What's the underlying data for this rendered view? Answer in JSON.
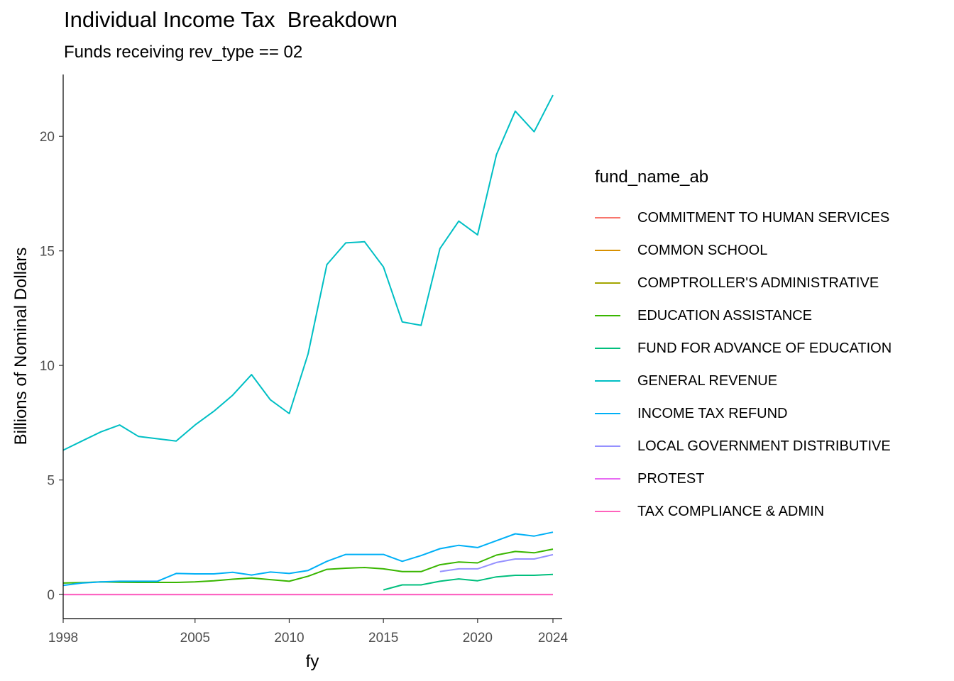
{
  "chart_data": {
    "type": "line",
    "title": "Individual Income Tax  Breakdown",
    "subtitle": "Funds receiving rev_type == 02",
    "xlabel": "fy",
    "ylabel": "Billions of Nominal Dollars",
    "xlim": [
      1998,
      2024
    ],
    "ylim": [
      -1.05,
      22.7
    ],
    "xticks": [
      1998,
      2005,
      2010,
      2015,
      2020,
      2024
    ],
    "yticks": [
      0,
      5,
      10,
      15,
      20
    ],
    "grid": false,
    "legend_position": "right",
    "legend_title": "fund_name_ab",
    "series": [
      {
        "name": "COMMITMENT TO HUMAN SERVICES",
        "color": "#F8766D",
        "x": [],
        "y": []
      },
      {
        "name": "COMMON SCHOOL",
        "color": "#D89000",
        "x": [],
        "y": []
      },
      {
        "name": "COMPTROLLER'S ADMINISTRATIVE",
        "color": "#A3A500",
        "x": [],
        "y": []
      },
      {
        "name": "EDUCATION ASSISTANCE",
        "color": "#39B600",
        "x": [
          1998,
          1999,
          2000,
          2001,
          2002,
          2003,
          2004,
          2005,
          2006,
          2007,
          2008,
          2009,
          2010,
          2011,
          2012,
          2013,
          2014,
          2015,
          2016,
          2017,
          2018,
          2019,
          2020,
          2021,
          2022,
          2023,
          2024
        ],
        "y": [
          0.5,
          0.52,
          0.55,
          0.54,
          0.53,
          0.53,
          0.53,
          0.55,
          0.6,
          0.67,
          0.72,
          0.65,
          0.58,
          0.8,
          1.1,
          1.15,
          1.18,
          1.12,
          1.0,
          1.0,
          1.3,
          1.42,
          1.38,
          1.72,
          1.88,
          1.82,
          1.98
        ]
      },
      {
        "name": "FUND FOR ADVANCE OF EDUCATION",
        "color": "#00BF7D",
        "x": [
          2015,
          2016,
          2017,
          2018,
          2019,
          2020,
          2021,
          2022,
          2023,
          2024
        ],
        "y": [
          0.2,
          0.42,
          0.42,
          0.58,
          0.68,
          0.6,
          0.77,
          0.84,
          0.84,
          0.88
        ]
      },
      {
        "name": "GENERAL REVENUE",
        "color": "#00BFC4",
        "x": [
          1998,
          1999,
          2000,
          2001,
          2002,
          2003,
          2004,
          2005,
          2006,
          2007,
          2008,
          2009,
          2010,
          2011,
          2012,
          2013,
          2014,
          2015,
          2016,
          2017,
          2018,
          2019,
          2020,
          2021,
          2022,
          2023,
          2024
        ],
        "y": [
          6.3,
          6.7,
          7.1,
          7.4,
          6.9,
          6.8,
          6.7,
          7.4,
          8.0,
          8.7,
          9.6,
          8.5,
          7.9,
          10.5,
          14.4,
          15.35,
          15.4,
          14.3,
          11.9,
          11.75,
          15.1,
          16.3,
          15.7,
          19.2,
          21.1,
          20.2,
          21.8
        ]
      },
      {
        "name": "INCOME TAX REFUND",
        "color": "#00B0F6",
        "x": [
          1998,
          1999,
          2000,
          2001,
          2002,
          2003,
          2004,
          2005,
          2006,
          2007,
          2008,
          2009,
          2010,
          2011,
          2012,
          2013,
          2014,
          2015,
          2016,
          2017,
          2018,
          2019,
          2020,
          2021,
          2022,
          2023,
          2024
        ],
        "y": [
          0.4,
          0.5,
          0.55,
          0.58,
          0.58,
          0.58,
          0.92,
          0.9,
          0.9,
          0.97,
          0.85,
          0.98,
          0.92,
          1.05,
          1.45,
          1.75,
          1.75,
          1.75,
          1.45,
          1.7,
          2.0,
          2.15,
          2.05,
          2.35,
          2.65,
          2.55,
          2.72
        ]
      },
      {
        "name": "LOCAL GOVERNMENT DISTRIBUTIVE",
        "color": "#9590FF",
        "x": [
          2018,
          2019,
          2020,
          2021,
          2022,
          2023,
          2024
        ],
        "y": [
          1.0,
          1.12,
          1.12,
          1.4,
          1.55,
          1.55,
          1.74
        ]
      },
      {
        "name": "PROTEST",
        "color": "#E76BF3",
        "x": [
          1998,
          2024
        ],
        "y": [
          0.0,
          0.0
        ]
      },
      {
        "name": "TAX COMPLIANCE & ADMIN",
        "color": "#FF62BC",
        "x": [
          1998,
          2024
        ],
        "y": [
          0.0,
          0.0
        ]
      }
    ]
  }
}
